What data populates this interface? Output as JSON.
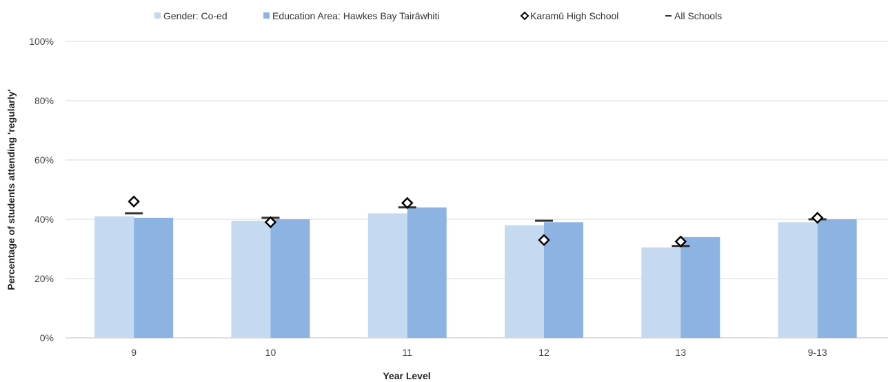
{
  "chart_data": {
    "type": "bar",
    "title": "",
    "xlabel": "Year Level",
    "ylabel": "Percentage of students attending 'regularly'",
    "categories": [
      "9",
      "10",
      "11",
      "12",
      "13",
      "9-13"
    ],
    "ylim": [
      0,
      100
    ],
    "yticks": [
      "0%",
      "20%",
      "40%",
      "60%",
      "80%",
      "100%"
    ],
    "ytick_values": [
      0,
      20,
      40,
      60,
      80,
      100
    ],
    "grid": true,
    "legend_position": "top",
    "series": [
      {
        "name": "Gender: Co-ed",
        "kind": "bar",
        "color": "#c5d9f1",
        "values": [
          41,
          39.5,
          42,
          38,
          30.5,
          39
        ]
      },
      {
        "name": "Education Area: Hawkes Bay Tairāwhiti",
        "kind": "bar",
        "color": "#8db3e2",
        "values": [
          40.5,
          40,
          44,
          39,
          34,
          40
        ]
      },
      {
        "name": "Karamū High School",
        "kind": "marker-diamond",
        "color": "#000000",
        "values": [
          46,
          39,
          45.5,
          33,
          32.5,
          40.5
        ]
      },
      {
        "name": "All Schools",
        "kind": "marker-dash",
        "color": "#333333",
        "values": [
          42,
          40.5,
          44,
          39.5,
          31,
          40
        ]
      }
    ]
  }
}
